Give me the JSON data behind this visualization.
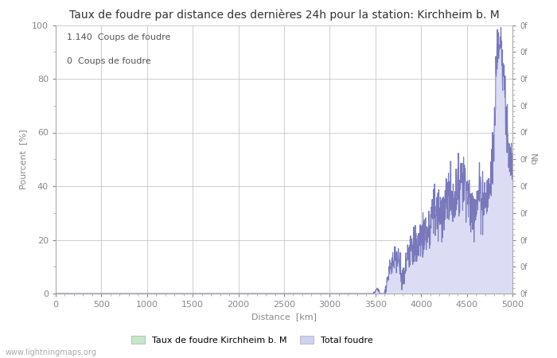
{
  "title": "Taux de foudre par distance des dernières 24h pour la station: Kirchheim b. M",
  "xlabel": "Distance  [km]",
  "ylabel_left": "Pourcent  [%]",
  "ylabel_right": "Nb",
  "annotation_line1": "1.140  Coups de foudre",
  "annotation_line2": "0  Coups de foudre",
  "watermark": "www.lightningmaps.org",
  "legend_label1": "Taux de foudre Kirchheim b. M",
  "legend_label2": "Total foudre",
  "legend_color1": "#c8e6c9",
  "legend_color2": "#d0d0f0",
  "line_color": "#7878bb",
  "fill_color": "#dcdcf5",
  "xlim": [
    0,
    5000
  ],
  "ylim": [
    0,
    100
  ],
  "xticks": [
    0,
    500,
    1000,
    1500,
    2000,
    2500,
    3000,
    3500,
    4000,
    4500,
    5000
  ],
  "yticks_left": [
    0,
    20,
    40,
    60,
    80,
    100
  ],
  "bg_color": "#ffffff",
  "grid_color": "#bbbbbb",
  "title_fontsize": 10,
  "axis_label_fontsize": 8,
  "tick_fontsize": 8
}
